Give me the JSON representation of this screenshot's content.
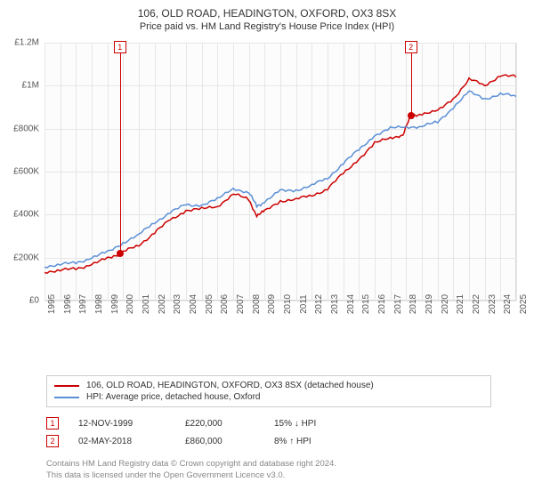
{
  "title": "106, OLD ROAD, HEADINGTON, OXFORD, OX3 8SX",
  "subtitle": "Price paid vs. HM Land Registry's House Price Index (HPI)",
  "chart": {
    "type": "line",
    "background_color": "#fcfcfc",
    "border_color": "#d9d9d9",
    "grid_color": "#e6e6e6",
    "ylim": [
      0,
      1200000
    ],
    "ytick_step": 200000,
    "yticks": [
      "£0",
      "£200K",
      "£400K",
      "£600K",
      "£800K",
      "£1M",
      "£1.2M"
    ],
    "xlim": [
      1995,
      2025
    ],
    "xticks": [
      1995,
      1996,
      1997,
      1998,
      1999,
      2000,
      2001,
      2002,
      2003,
      2004,
      2005,
      2006,
      2007,
      2008,
      2009,
      2010,
      2011,
      2012,
      2013,
      2014,
      2015,
      2016,
      2017,
      2018,
      2019,
      2020,
      2021,
      2022,
      2023,
      2024,
      2025
    ],
    "series": [
      {
        "name": "price_paid",
        "label": "106, OLD ROAD, HEADINGTON, OXFORD, OX3 8SX (detached house)",
        "color": "#cc0000",
        "line_width": 1.5,
        "data": [
          [
            1995,
            135000
          ],
          [
            1996,
            138000
          ],
          [
            1997,
            150000
          ],
          [
            1998,
            168000
          ],
          [
            1999,
            195000
          ],
          [
            1999.8,
            220000
          ],
          [
            2000,
            225000
          ],
          [
            2001,
            260000
          ],
          [
            2002,
            315000
          ],
          [
            2003,
            375000
          ],
          [
            2004,
            420000
          ],
          [
            2005,
            425000
          ],
          [
            2006,
            440000
          ],
          [
            2007,
            495000
          ],
          [
            2008,
            470000
          ],
          [
            2008.5,
            395000
          ],
          [
            2009,
            415000
          ],
          [
            2010,
            465000
          ],
          [
            2011,
            470000
          ],
          [
            2012,
            490000
          ],
          [
            2013,
            520000
          ],
          [
            2014,
            590000
          ],
          [
            2015,
            660000
          ],
          [
            2016,
            730000
          ],
          [
            2017,
            760000
          ],
          [
            2017.8,
            770000
          ],
          [
            2018.3,
            860000
          ],
          [
            2019,
            870000
          ],
          [
            2020,
            880000
          ],
          [
            2021,
            940000
          ],
          [
            2022,
            1030000
          ],
          [
            2023,
            1000000
          ],
          [
            2024,
            1050000
          ],
          [
            2025,
            1040000
          ]
        ]
      },
      {
        "name": "hpi",
        "label": "HPI: Average price, detached house, Oxford",
        "color": "#5b8fd6",
        "line_width": 1.5,
        "data": [
          [
            1995,
            160000
          ],
          [
            1996,
            165000
          ],
          [
            1997,
            178000
          ],
          [
            1998,
            198000
          ],
          [
            1999,
            225000
          ],
          [
            2000,
            270000
          ],
          [
            2001,
            305000
          ],
          [
            2002,
            365000
          ],
          [
            2003,
            410000
          ],
          [
            2004,
            445000
          ],
          [
            2005,
            445000
          ],
          [
            2006,
            470000
          ],
          [
            2007,
            525000
          ],
          [
            2008,
            500000
          ],
          [
            2008.5,
            440000
          ],
          [
            2009,
            460000
          ],
          [
            2010,
            510000
          ],
          [
            2011,
            515000
          ],
          [
            2012,
            535000
          ],
          [
            2013,
            570000
          ],
          [
            2014,
            640000
          ],
          [
            2015,
            700000
          ],
          [
            2016,
            770000
          ],
          [
            2017,
            800000
          ],
          [
            2018,
            810000
          ],
          [
            2019,
            810000
          ],
          [
            2020,
            830000
          ],
          [
            2021,
            900000
          ],
          [
            2022,
            970000
          ],
          [
            2023,
            940000
          ],
          [
            2024,
            960000
          ],
          [
            2025,
            950000
          ]
        ]
      }
    ],
    "markers": [
      {
        "n": "1",
        "x": 1999.8,
        "y": 220000
      },
      {
        "n": "2",
        "x": 2018.3,
        "y": 860000
      }
    ]
  },
  "legend": {
    "border_color": "#cccccc"
  },
  "events": [
    {
      "n": "1",
      "date": "12-NOV-1999",
      "price": "£220,000",
      "diff": "15% ↓ HPI"
    },
    {
      "n": "2",
      "date": "02-MAY-2018",
      "price": "£860,000",
      "diff": "8% ↑ HPI"
    }
  ],
  "footer": {
    "line1": "Contains HM Land Registry data © Crown copyright and database right 2024.",
    "line2": "This data is licensed under the Open Government Licence v3.0."
  }
}
